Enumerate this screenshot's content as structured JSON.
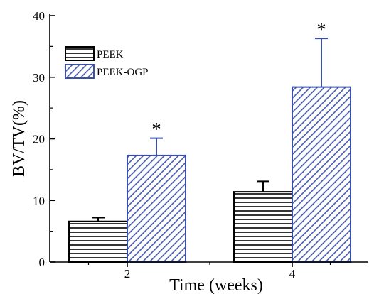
{
  "chart_data": {
    "type": "bar",
    "xlabel": "Time (weeks)",
    "ylabel": "BV/TV(%)",
    "categories": [
      "2",
      "4"
    ],
    "ylim": [
      0,
      40
    ],
    "yticks": [
      0,
      10,
      20,
      30,
      40
    ],
    "yticks_labels": [
      "0",
      "10",
      "20",
      "30",
      "40"
    ],
    "legend_position": "top-left",
    "grid": false,
    "series": [
      {
        "name": "PEEK",
        "values": [
          6.6,
          11.4
        ],
        "errors": [
          0.6,
          1.7
        ],
        "annotations": [
          "",
          ""
        ],
        "pattern": "horizontal-lines",
        "color": "#000000"
      },
      {
        "name": "PEEK-OGP",
        "values": [
          17.3,
          28.4
        ],
        "errors": [
          2.8,
          7.9
        ],
        "annotations": [
          "*",
          "*"
        ],
        "pattern": "diagonal-lines",
        "color": "#3a4fa8"
      }
    ]
  }
}
